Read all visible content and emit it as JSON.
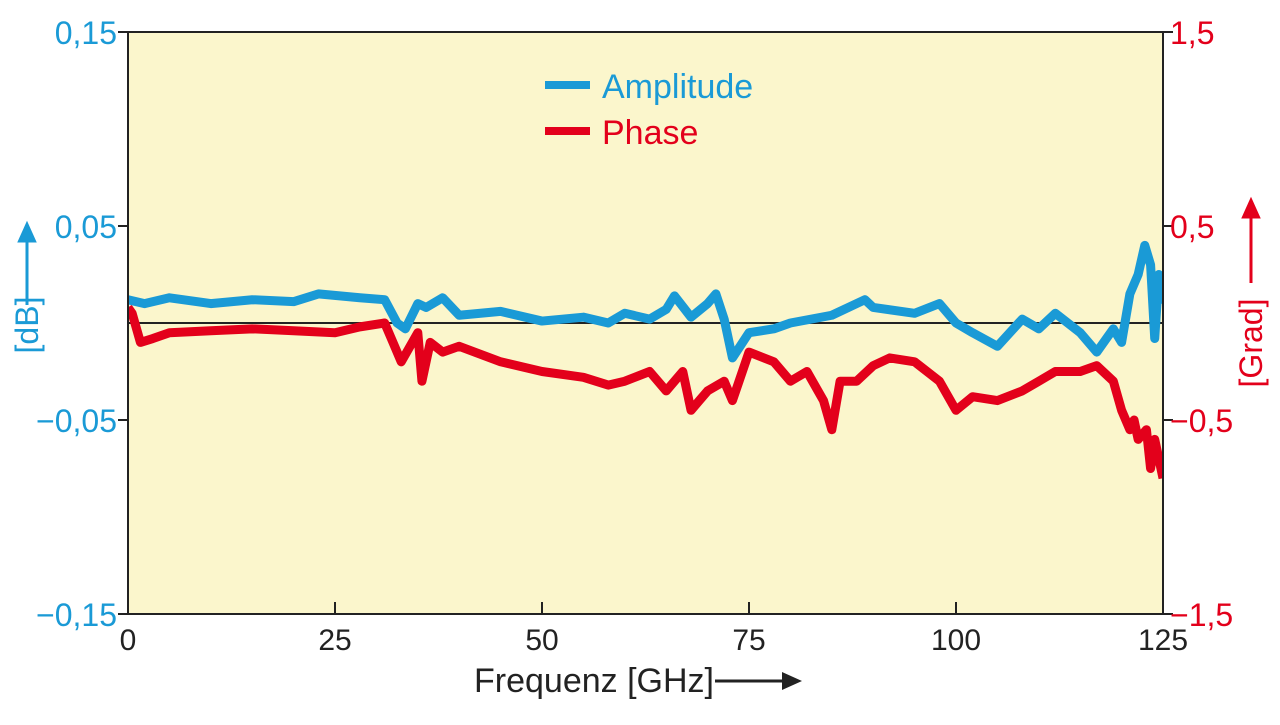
{
  "chart_data": {
    "type": "line",
    "x_axis": {
      "label": "Frequenz [GHz]",
      "range": [
        0,
        125
      ],
      "ticks": [
        0,
        25,
        50,
        75,
        100,
        125
      ],
      "tick_labels": [
        "0",
        "25",
        "50",
        "75",
        "100",
        "125"
      ]
    },
    "y_axis_left": {
      "label": "[dB]",
      "range": [
        -0.15,
        0.15
      ],
      "ticks": [
        -0.15,
        -0.05,
        0.05,
        0.15
      ],
      "tick_labels": [
        "−0,15",
        "−0,05",
        "0,05",
        "0,15"
      ],
      "color": "#1a9ad6"
    },
    "y_axis_right": {
      "label": "[Grad]",
      "range": [
        -1.5,
        1.5
      ],
      "ticks": [
        -1.5,
        -0.5,
        0.5,
        1.5
      ],
      "tick_labels": [
        "−1,5",
        "−0,5",
        "0,5",
        "1,5"
      ],
      "color": "#e3001b"
    },
    "reference_line": 0,
    "legend": {
      "position": "top-center"
    },
    "series": [
      {
        "name": "Amplitude",
        "axis": "left",
        "color": "#1a9ad6",
        "x": [
          0,
          2,
          5,
          10,
          15,
          20,
          23,
          28,
          31,
          32.5,
          33.5,
          35,
          36,
          38,
          40,
          45,
          50,
          55,
          58,
          60,
          63,
          65,
          66,
          68,
          70,
          71,
          72,
          73,
          75,
          78,
          80,
          85,
          88,
          89,
          90,
          95,
          98,
          100,
          102,
          105,
          108,
          110,
          112,
          115,
          117,
          119,
          120,
          121,
          122,
          122.8,
          123.5,
          124,
          124.5,
          125
        ],
        "y": [
          0.012,
          0.01,
          0.013,
          0.01,
          0.012,
          0.011,
          0.015,
          0.013,
          0.012,
          0.0,
          -0.003,
          0.01,
          0.008,
          0.013,
          0.004,
          0.006,
          0.001,
          0.003,
          0.0,
          0.005,
          0.002,
          0.007,
          0.014,
          0.003,
          0.01,
          0.015,
          0.002,
          -0.018,
          -0.005,
          -0.003,
          0.0,
          0.004,
          0.01,
          0.012,
          0.008,
          0.005,
          0.01,
          0.0,
          -0.005,
          -0.012,
          0.002,
          -0.003,
          0.005,
          -0.005,
          -0.015,
          -0.003,
          -0.01,
          0.015,
          0.025,
          0.04,
          0.03,
          -0.008,
          0.025,
          0.01
        ]
      },
      {
        "name": "Phase",
        "axis": "right",
        "color": "#e3001b",
        "x": [
          0,
          0.5,
          1.5,
          3,
          5,
          10,
          15,
          20,
          25,
          28,
          31,
          32,
          33,
          35,
          35.5,
          36.5,
          38,
          40,
          45,
          50,
          55,
          58,
          60,
          63,
          65,
          67,
          68,
          69,
          70,
          72,
          73,
          75,
          78,
          80,
          82,
          84,
          85,
          86,
          88,
          90,
          92,
          95,
          98,
          100,
          102,
          105,
          108,
          110,
          112,
          115,
          117,
          119,
          120,
          121,
          121.5,
          122,
          123,
          123.5,
          124,
          125
        ],
        "y": [
          0.08,
          0.05,
          -0.1,
          -0.08,
          -0.05,
          -0.04,
          -0.03,
          -0.04,
          -0.05,
          -0.02,
          0.0,
          -0.1,
          -0.2,
          -0.05,
          -0.3,
          -0.1,
          -0.15,
          -0.12,
          -0.2,
          -0.25,
          -0.28,
          -0.32,
          -0.3,
          -0.25,
          -0.35,
          -0.25,
          -0.45,
          -0.4,
          -0.35,
          -0.3,
          -0.4,
          -0.15,
          -0.2,
          -0.3,
          -0.25,
          -0.4,
          -0.55,
          -0.3,
          -0.3,
          -0.22,
          -0.18,
          -0.2,
          -0.3,
          -0.45,
          -0.38,
          -0.4,
          -0.35,
          -0.3,
          -0.25,
          -0.25,
          -0.22,
          -0.3,
          -0.45,
          -0.55,
          -0.5,
          -0.6,
          -0.55,
          -0.75,
          -0.6,
          -0.8
        ]
      }
    ]
  }
}
